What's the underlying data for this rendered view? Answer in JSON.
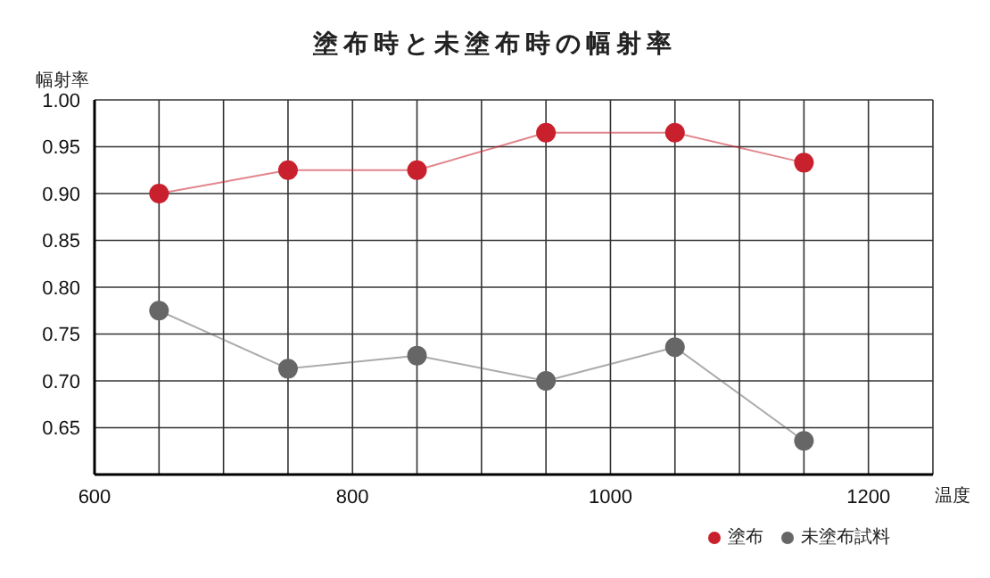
{
  "chart_data": {
    "type": "line",
    "title": "塗布時と未塗布時の幅射率",
    "ylabel": "幅射率",
    "xlabel": "温度",
    "x": [
      650,
      750,
      850,
      950,
      1050,
      1150
    ],
    "series": [
      {
        "name": "塗布",
        "color": "#c8202c",
        "values": [
          0.9,
          0.925,
          0.925,
          0.965,
          0.965,
          0.933
        ]
      },
      {
        "name": "未塗布試料",
        "color": "#666666",
        "values": [
          0.775,
          0.713,
          0.727,
          0.7,
          0.736,
          0.636
        ]
      }
    ],
    "xlim": [
      600,
      1250
    ],
    "xticks": [
      600,
      {
        "value": 650,
        "label": null
      },
      {
        "value": 700,
        "label": null
      },
      {
        "value": 750,
        "label": null
      },
      800,
      {
        "value": 850,
        "label": null
      },
      {
        "value": 900,
        "label": null
      },
      {
        "value": 950,
        "label": null
      },
      1000,
      {
        "value": 1050,
        "label": null
      },
      {
        "value": 1100,
        "label": null
      },
      {
        "value": 1150,
        "label": null
      },
      1200
    ],
    "ylim": [
      0.6,
      1.0
    ],
    "yticks": [
      {
        "value": 0.6,
        "label": null
      },
      {
        "value": 0.65,
        "label": "0.65"
      },
      {
        "value": 0.7,
        "label": "0.70"
      },
      {
        "value": 0.75,
        "label": "0.75"
      },
      {
        "value": 0.8,
        "label": "0.80"
      },
      {
        "value": 0.85,
        "label": "0.85"
      },
      {
        "value": 0.9,
        "label": "0.90"
      },
      {
        "value": 0.95,
        "label": "0.95"
      },
      {
        "value": 1.0,
        "label": "1.00"
      }
    ],
    "grid": true,
    "legend": "bottom right",
    "marker": "circle",
    "line_style": "solid"
  }
}
